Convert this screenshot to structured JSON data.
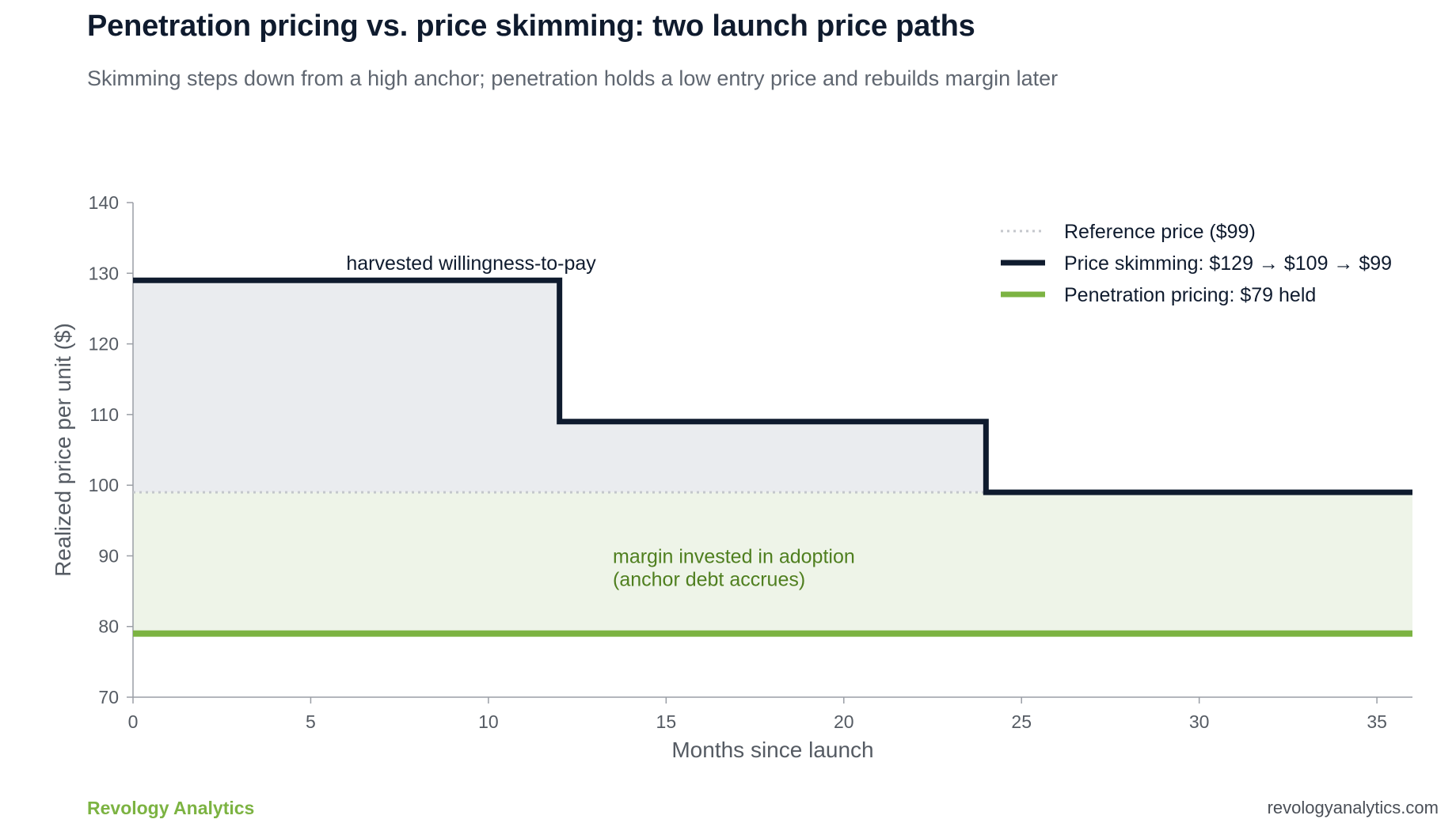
{
  "header": {
    "title": "Penetration pricing vs. price skimming: two launch price paths",
    "subtitle": "Skimming steps down from a high anchor; penetration holds a low entry price and rebuilds margin later"
  },
  "footer": {
    "brand": "Revology Analytics",
    "url": "revologyanalytics.com"
  },
  "chart_data": {
    "type": "line",
    "xlabel": "Months since launch",
    "ylabel": "Realized price per unit ($)",
    "xlim": [
      0,
      36
    ],
    "ylim": [
      70,
      140
    ],
    "xticks": [
      0,
      5,
      10,
      15,
      20,
      25,
      30,
      35
    ],
    "yticks": [
      70,
      80,
      90,
      100,
      110,
      120,
      130,
      140
    ],
    "grid": false,
    "legend_position": "top-right",
    "series": [
      {
        "name": "Reference price ($99)",
        "style": "dotted",
        "color": "#c4c7cc",
        "x": [
          0,
          36
        ],
        "y": [
          99,
          99
        ]
      },
      {
        "name": "Price skimming: $129 → $109 → $99",
        "style": "step",
        "color": "#0f1b2e",
        "x": [
          0,
          12,
          12,
          24,
          24,
          36
        ],
        "y": [
          129,
          129,
          109,
          109,
          99,
          99
        ]
      },
      {
        "name": "Penetration pricing: $79 held",
        "style": "solid",
        "color": "#7cb342",
        "x": [
          0,
          36
        ],
        "y": [
          79,
          79
        ]
      }
    ],
    "shaded_regions": [
      {
        "between": "skimming and reference",
        "color": "#eaecef"
      },
      {
        "between": "skimming and penetration",
        "color": "#eef4e8"
      }
    ],
    "annotations": [
      {
        "text": "harvested willingness-to-pay",
        "x": 6,
        "y": 130.5,
        "color": "#0f1b2e"
      },
      {
        "lines": [
          "margin invested in adoption",
          "(anchor debt accrues)"
        ],
        "x": 13.5,
        "y": 89,
        "color": "#4f7f1f"
      }
    ]
  }
}
